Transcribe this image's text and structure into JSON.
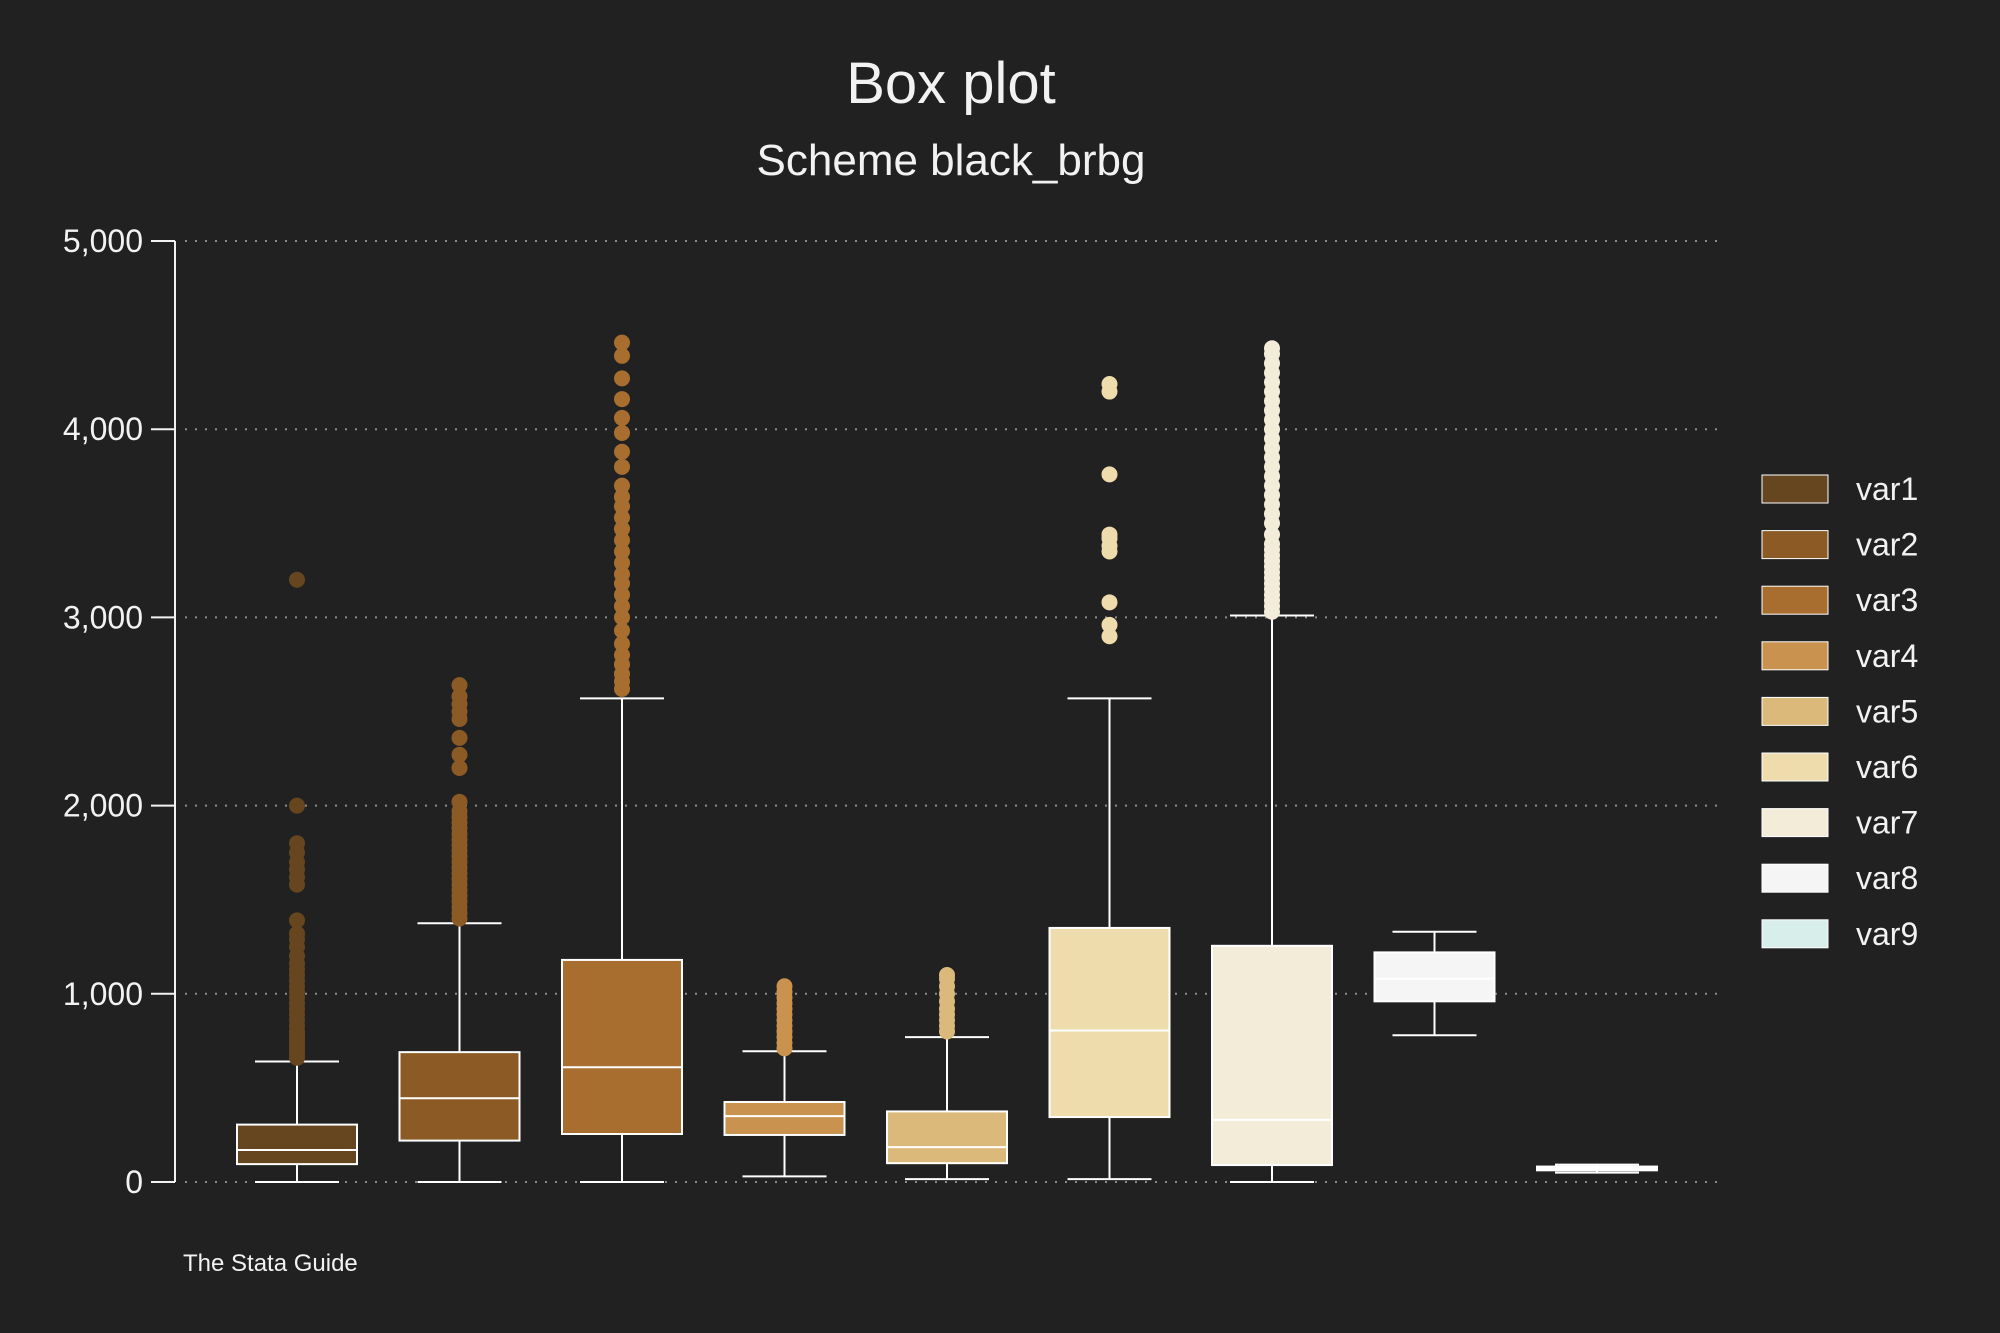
{
  "chart_data": {
    "type": "box",
    "title": "Box plot",
    "subtitle": "Scheme black_brbg",
    "note": "The Stata Guide",
    "xlabel": "",
    "ylabel": "",
    "ylim": [
      0,
      5000
    ],
    "yticks": [
      0,
      1000,
      2000,
      3000,
      4000,
      5000
    ],
    "ytick_labels": [
      "0",
      "1,000",
      "2,000",
      "3,000",
      "4,000",
      "5,000"
    ],
    "grid": true,
    "legend_position": "right",
    "series": [
      {
        "name": "var1",
        "color": "#66461f",
        "whisker_low": 0,
        "q1": 95,
        "median": 170,
        "q3": 305,
        "whisker_high": 640,
        "outliers": [
          660,
          680,
          700,
          720,
          740,
          760,
          780,
          800,
          830,
          860,
          890,
          920,
          950,
          980,
          1010,
          1040,
          1070,
          1100,
          1130,
          1160,
          1200,
          1250,
          1290,
          1320,
          1390,
          1580,
          1620,
          1660,
          1700,
          1750,
          1800,
          2000,
          3200
        ]
      },
      {
        "name": "var2",
        "color": "#8b5a25",
        "whisker_low": 0,
        "q1": 220,
        "median": 445,
        "q3": 690,
        "whisker_high": 1375,
        "outliers": [
          1400,
          1430,
          1460,
          1490,
          1520,
          1550,
          1580,
          1610,
          1640,
          1670,
          1700,
          1730,
          1760,
          1790,
          1820,
          1850,
          1880,
          1910,
          1940,
          1970,
          2020,
          2200,
          2270,
          2360,
          2460,
          2500,
          2540,
          2580,
          2640
        ]
      },
      {
        "name": "var3",
        "color": "#a86e30",
        "whisker_low": 0,
        "q1": 255,
        "median": 610,
        "q3": 1180,
        "whisker_high": 2570,
        "outliers": [
          2620,
          2660,
          2700,
          2750,
          2800,
          2860,
          2930,
          3000,
          3060,
          3120,
          3180,
          3230,
          3290,
          3350,
          3410,
          3470,
          3530,
          3590,
          3640,
          3700,
          3800,
          3880,
          3980,
          4060,
          4160,
          4270,
          4390,
          4460
        ]
      },
      {
        "name": "var4",
        "color": "#c9924e",
        "whisker_low": 30,
        "q1": 250,
        "median": 350,
        "q3": 425,
        "whisker_high": 695,
        "outliers": [
          710,
          740,
          770,
          800,
          830,
          860,
          890,
          920,
          950,
          980,
          1010,
          1040
        ]
      },
      {
        "name": "var5",
        "color": "#dbb97a",
        "whisker_low": 15,
        "q1": 100,
        "median": 185,
        "q3": 375,
        "whisker_high": 770,
        "outliers": [
          800,
          830,
          860,
          890,
          920,
          960,
          1000,
          1040,
          1080,
          1100
        ]
      },
      {
        "name": "var6",
        "color": "#eedcad",
        "whisker_low": 15,
        "q1": 345,
        "median": 805,
        "q3": 1350,
        "whisker_high": 2570,
        "outliers": [
          2900,
          2960,
          3080,
          3350,
          3380,
          3420,
          3440,
          3760,
          4200,
          4240
        ]
      },
      {
        "name": "var7",
        "color": "#f3ecd9",
        "whisker_low": 0,
        "q1": 90,
        "median": 330,
        "q3": 1255,
        "whisker_high": 3010,
        "outliers": [
          3030,
          3060,
          3090,
          3120,
          3150,
          3180,
          3210,
          3240,
          3270,
          3300,
          3330,
          3360,
          3390,
          3440,
          3500,
          3550,
          3600,
          3650,
          3700,
          3750,
          3800,
          3850,
          3900,
          3950,
          4000,
          4050,
          4100,
          4150,
          4200,
          4250,
          4300,
          4350,
          4400,
          4430
        ]
      },
      {
        "name": "var8",
        "color": "#f5f5f5",
        "whisker_low": 780,
        "q1": 960,
        "median": 1080,
        "q3": 1220,
        "whisker_high": 1330,
        "outliers": []
      },
      {
        "name": "var9",
        "color": "#d7eeea",
        "whisker_low": 50,
        "q1": 62,
        "median": 72,
        "q3": 82,
        "whisker_high": 92,
        "outliers": []
      }
    ]
  },
  "colors": {
    "background": "#212121",
    "text": "#f2f2f2",
    "grid": "#8c8c8c",
    "box_line": "#ffffff"
  }
}
